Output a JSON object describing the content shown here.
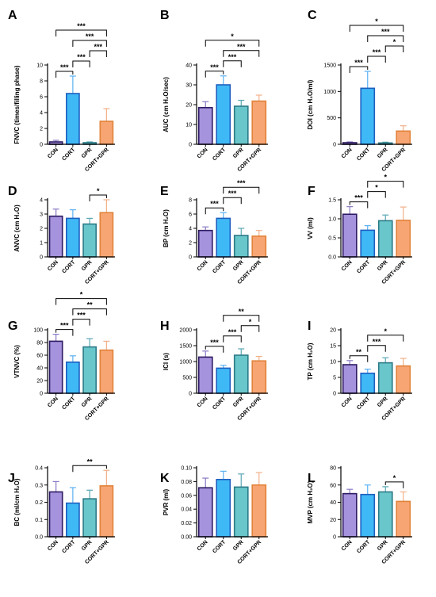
{
  "colors": {
    "CON": "#a593dd",
    "CORT": "#3fb9f6",
    "GPR": "#69c6cb",
    "CORT+GPR": "#f7a573",
    "CON_edge": "#2e1a63",
    "CORT_edge": "#1d5fc0",
    "GPR_edge": "#2c7a86",
    "CORT+GPR_edge": "#e1833a",
    "err_CON": "#8a7ac4",
    "err_CORT": "#5ab0f2",
    "err_GPR": "#5aa7b5",
    "err_CORT+GPR": "#f2b088"
  },
  "chart_data": [
    {
      "panel": "A",
      "type": "bar",
      "ylabel": "FNVC (times/filling phase)",
      "categories": [
        "CON",
        "CORT",
        "GPR",
        "CORT+GPR"
      ],
      "values": [
        0.3,
        6.4,
        0.2,
        2.9
      ],
      "errors": [
        0.2,
        2.2,
        0.1,
        1.6
      ],
      "ylim": [
        0,
        10
      ],
      "yticks": [
        "0",
        "2",
        "4",
        "6",
        "8",
        "10"
      ],
      "sig": [
        {
          "a": 0,
          "b": 1,
          "label": "***"
        },
        {
          "a": 1,
          "b": 2,
          "label": "***"
        },
        {
          "a": 1,
          "b": 3,
          "label": "***"
        },
        {
          "a": 2,
          "b": 3,
          "label": "***"
        },
        {
          "a": 0,
          "b": 3,
          "label": "***"
        }
      ]
    },
    {
      "panel": "B",
      "type": "bar",
      "ylabel": "AUC (cm H₂O/sec)",
      "categories": [
        "CON",
        "CORT",
        "GPR",
        "CORT+GPR"
      ],
      "values": [
        18.5,
        30,
        19.2,
        21.8
      ],
      "errors": [
        3,
        4.5,
        3,
        3
      ],
      "ylim": [
        0,
        40
      ],
      "yticks": [
        "0",
        "10",
        "20",
        "30",
        "40"
      ],
      "sig": [
        {
          "a": 0,
          "b": 1,
          "label": "***"
        },
        {
          "a": 1,
          "b": 2,
          "label": "***"
        },
        {
          "a": 1,
          "b": 3,
          "label": "***"
        },
        {
          "a": 0,
          "b": 3,
          "label": "*"
        }
      ]
    },
    {
      "panel": "C",
      "type": "bar",
      "ylabel": "DOI (cm H₂O/ml)",
      "categories": [
        "CON",
        "CORT",
        "GPR",
        "CORT+GPR"
      ],
      "values": [
        30,
        1060,
        25,
        250
      ],
      "errors": [
        15,
        320,
        15,
        100
      ],
      "ylim": [
        0,
        1500
      ],
      "yticks": [
        "0",
        "500",
        "1000",
        "1500"
      ],
      "sig": [
        {
          "a": 0,
          "b": 1,
          "label": "***"
        },
        {
          "a": 2,
          "b": 3,
          "label": "*"
        },
        {
          "a": 1,
          "b": 2,
          "label": "***"
        },
        {
          "a": 1,
          "b": 3,
          "label": "***"
        },
        {
          "a": 0,
          "b": 3,
          "label": "*"
        }
      ]
    },
    {
      "panel": "D",
      "type": "bar",
      "ylabel": "ANVC (cm H₂O)",
      "categories": [
        "CON",
        "CORT",
        "GPR",
        "CORT+GPR"
      ],
      "values": [
        2.85,
        2.7,
        2.3,
        3.1
      ],
      "errors": [
        0.5,
        0.6,
        0.4,
        0.9
      ],
      "ylim": [
        0,
        4
      ],
      "yticks": [
        "0",
        "1",
        "2",
        "3",
        "4"
      ],
      "sig": [
        {
          "a": 2,
          "b": 3,
          "label": "*"
        }
      ]
    },
    {
      "panel": "E",
      "type": "bar",
      "ylabel": "BP (cm H₂O)",
      "categories": [
        "CON",
        "CORT",
        "GPR",
        "CORT+GPR"
      ],
      "values": [
        3.7,
        5.4,
        3.0,
        2.9
      ],
      "errors": [
        0.5,
        0.8,
        1.0,
        0.8
      ],
      "ylim": [
        0,
        8
      ],
      "yticks": [
        "0",
        "2",
        "4",
        "6",
        "8"
      ],
      "sig": [
        {
          "a": 0,
          "b": 1,
          "label": "***"
        },
        {
          "a": 1,
          "b": 2,
          "label": "***"
        },
        {
          "a": 1,
          "b": 3,
          "label": "***"
        }
      ]
    },
    {
      "panel": "F",
      "type": "bar",
      "ylabel": "VV (ml)",
      "categories": [
        "CON",
        "CORT",
        "GPR",
        "CORT+GPR"
      ],
      "values": [
        1.12,
        0.7,
        0.95,
        0.96
      ],
      "errors": [
        0.2,
        0.12,
        0.15,
        0.35
      ],
      "ylim": [
        0,
        1.5
      ],
      "yticks": [
        "0.0",
        "0.5",
        "1.0",
        "1.5"
      ],
      "sig": [
        {
          "a": 0,
          "b": 1,
          "label": "***"
        },
        {
          "a": 1,
          "b": 2,
          "label": "*"
        },
        {
          "a": 1,
          "b": 3,
          "label": "*"
        }
      ]
    },
    {
      "panel": "G",
      "type": "bar",
      "ylabel": "VTNVC (%)",
      "categories": [
        "CON",
        "CORT",
        "GPR",
        "CORT+GPR"
      ],
      "values": [
        82,
        49,
        73,
        68
      ],
      "errors": [
        11,
        10,
        13,
        14
      ],
      "ylim": [
        0,
        100
      ],
      "yticks": [
        "0",
        "20",
        "40",
        "60",
        "80",
        "100"
      ],
      "sig": [
        {
          "a": 0,
          "b": 1,
          "label": "***"
        },
        {
          "a": 1,
          "b": 2,
          "label": "***"
        },
        {
          "a": 1,
          "b": 3,
          "label": "**"
        },
        {
          "a": 0,
          "b": 3,
          "label": "*"
        }
      ]
    },
    {
      "panel": "H",
      "type": "bar",
      "ylabel": "ICI (s)",
      "categories": [
        "CON",
        "CORT",
        "GPR",
        "CORT+GPR"
      ],
      "values": [
        1140,
        790,
        1200,
        1020
      ],
      "errors": [
        190,
        90,
        200,
        140
      ],
      "ylim": [
        0,
        2000
      ],
      "yticks": [
        "0",
        "500",
        "1000",
        "1500",
        "2000"
      ],
      "sig": [
        {
          "a": 0,
          "b": 1,
          "label": "***"
        },
        {
          "a": 1,
          "b": 2,
          "label": "***"
        },
        {
          "a": 2,
          "b": 3,
          "label": "*"
        },
        {
          "a": 1,
          "b": 3,
          "label": "**"
        }
      ]
    },
    {
      "panel": "I",
      "type": "bar",
      "ylabel": "TP (cm H₂O)",
      "categories": [
        "CON",
        "CORT",
        "GPR",
        "CORT+GPR"
      ],
      "values": [
        9,
        6.3,
        9.6,
        8.6
      ],
      "errors": [
        1.3,
        1.3,
        1.6,
        2.4
      ],
      "ylim": [
        0,
        20
      ],
      "yticks": [
        "0",
        "5",
        "10",
        "15",
        "20"
      ],
      "sig": [
        {
          "a": 0,
          "b": 1,
          "label": "**"
        },
        {
          "a": 1,
          "b": 2,
          "label": "***"
        },
        {
          "a": 1,
          "b": 3,
          "label": "*"
        }
      ]
    },
    {
      "panel": "J",
      "type": "bar",
      "ylabel": "BC (ml/cm H₂O)",
      "categories": [
        "CON",
        "CORT",
        "GPR",
        "CORT+GPR"
      ],
      "values": [
        0.26,
        0.195,
        0.22,
        0.295
      ],
      "errors": [
        0.06,
        0.09,
        0.05,
        0.09
      ],
      "ylim": [
        0,
        0.4
      ],
      "yticks": [
        "0.0",
        "0.1",
        "0.2",
        "0.3",
        "0.4"
      ],
      "sig": [
        {
          "a": 1,
          "b": 3,
          "label": "**"
        }
      ]
    },
    {
      "panel": "K",
      "type": "bar",
      "ylabel": "PVR (ml)",
      "categories": [
        "CON",
        "CORT",
        "GPR",
        "CORT+GPR"
      ],
      "values": [
        0.071,
        0.083,
        0.072,
        0.075
      ],
      "errors": [
        0.014,
        0.012,
        0.019,
        0.018
      ],
      "ylim": [
        0,
        0.1
      ],
      "yticks": [
        "0.00",
        "0.02",
        "0.04",
        "0.06",
        "0.08",
        "0.10"
      ],
      "sig": []
    },
    {
      "panel": "L",
      "type": "bar",
      "ylabel": "MVP (cm H₂O)",
      "categories": [
        "CON",
        "CORT",
        "GPR",
        "CORT+GPR"
      ],
      "values": [
        50,
        49,
        52,
        41
      ],
      "errors": [
        5,
        11,
        6,
        11
      ],
      "ylim": [
        0,
        80
      ],
      "yticks": [
        "0",
        "20",
        "40",
        "60",
        "80"
      ],
      "sig": [
        {
          "a": 2,
          "b": 3,
          "label": "*"
        }
      ]
    }
  ]
}
